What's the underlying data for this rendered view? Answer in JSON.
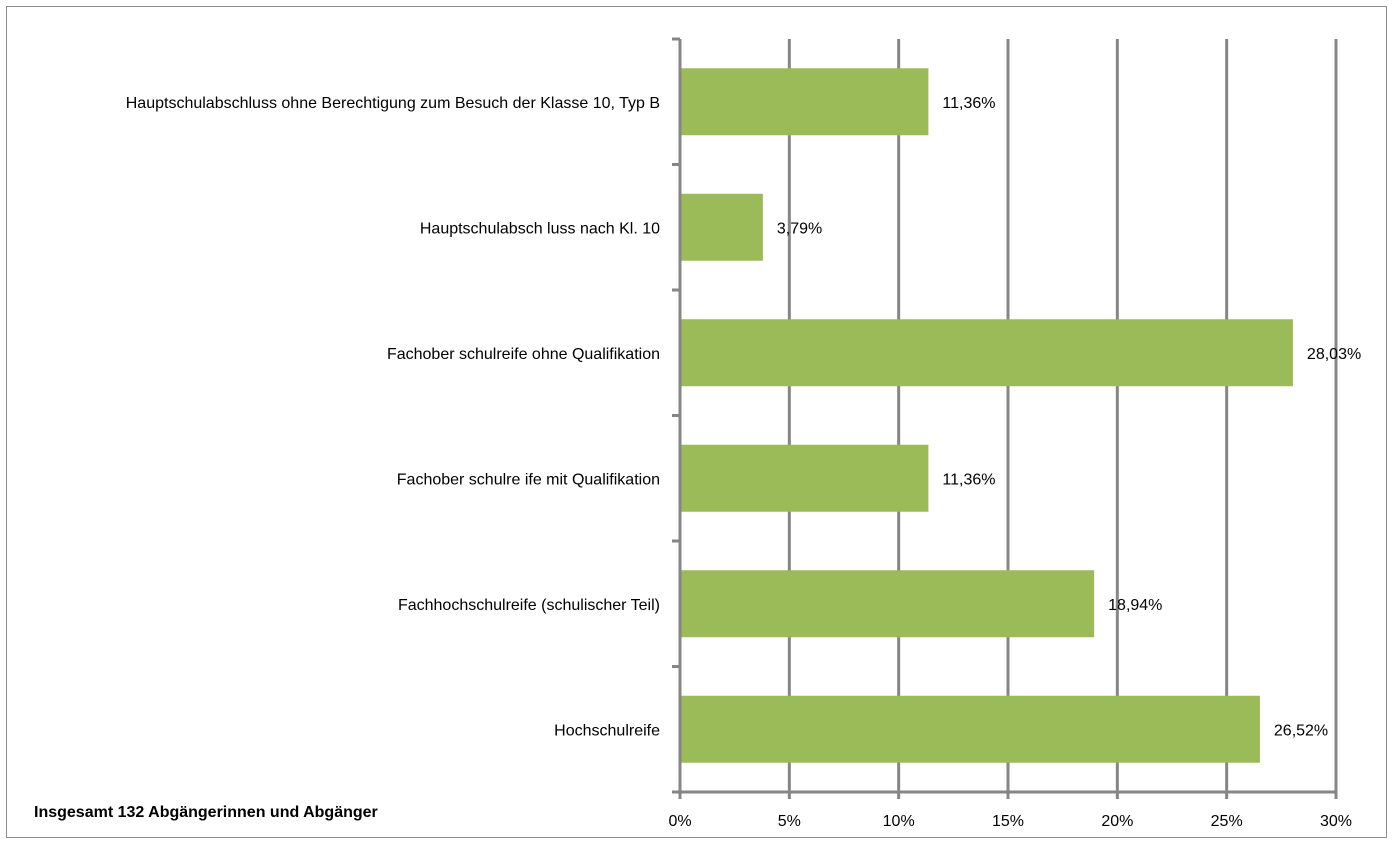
{
  "colors": {
    "bar": "#9bbb59",
    "grid": "#868686",
    "border": "#8c8c8c"
  },
  "footnote": "Insgesamt 132 Abgängerinnen und Abgänger",
  "chart_data": {
    "type": "bar",
    "orientation": "horizontal",
    "categories": [
      "Hauptschulabschluss ohne Berechtigung zum Besuch der Klasse 10, Typ B",
      "Hauptschulabsch luss nach Kl. 10",
      "Fachober schulreife ohne Qualifikation",
      "Fachober schulre ife mit Qualifikation",
      "Fachhochschulreife (schulischer Teil)",
      "Hochschulreife"
    ],
    "values": [
      11.36,
      3.79,
      28.03,
      11.36,
      18.94,
      26.52
    ],
    "value_labels": [
      "11,36%",
      "3,79%",
      "28,03%",
      "11,36%",
      "18,94%",
      "26,52%"
    ],
    "xlim": [
      0,
      30
    ],
    "x_ticks": [
      0,
      5,
      10,
      15,
      20,
      25,
      30
    ],
    "x_tick_labels": [
      "0%",
      "5%",
      "10%",
      "15%",
      "20%",
      "25%",
      "30%"
    ],
    "grid": true,
    "legend": "none"
  }
}
